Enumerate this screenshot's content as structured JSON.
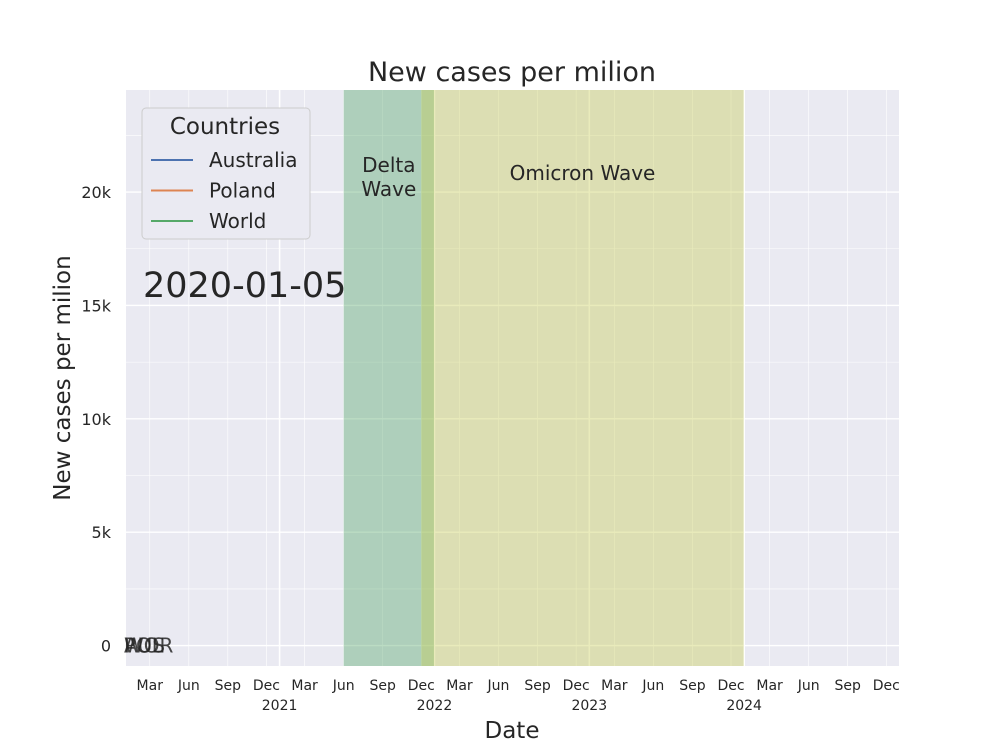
{
  "chart_data": {
    "type": "line",
    "title": "New cases per milion",
    "xlabel": "Date",
    "ylabel": "New cases per milion",
    "xlim": [
      "2020-01-05",
      "2024-12-31"
    ],
    "ylim": [
      -900,
      24500
    ],
    "y_ticks": [
      0,
      5000,
      10000,
      15000,
      20000
    ],
    "y_tick_labels": [
      "0",
      "5k",
      "10k",
      "15k",
      "20k"
    ],
    "x_ticks": [
      {
        "date": "2020-03-01",
        "label": "Mar"
      },
      {
        "date": "2020-06-01",
        "label": "Jun"
      },
      {
        "date": "2020-09-01",
        "label": "Sep"
      },
      {
        "date": "2020-12-01",
        "label": "Dec"
      },
      {
        "date": "2021-03-01",
        "label": "Mar"
      },
      {
        "date": "2021-06-01",
        "label": "Jun"
      },
      {
        "date": "2021-09-01",
        "label": "Sep"
      },
      {
        "date": "2021-12-01",
        "label": "Dec"
      },
      {
        "date": "2022-03-01",
        "label": "Mar"
      },
      {
        "date": "2022-06-01",
        "label": "Jun"
      },
      {
        "date": "2022-09-01",
        "label": "Sep"
      },
      {
        "date": "2022-12-01",
        "label": "Dec"
      },
      {
        "date": "2023-03-01",
        "label": "Mar"
      },
      {
        "date": "2023-06-01",
        "label": "Jun"
      },
      {
        "date": "2023-09-01",
        "label": "Sep"
      },
      {
        "date": "2023-12-01",
        "label": "Dec"
      },
      {
        "date": "2024-03-01",
        "label": "Mar"
      },
      {
        "date": "2024-06-01",
        "label": "Jun"
      },
      {
        "date": "2024-09-01",
        "label": "Sep"
      },
      {
        "date": "2024-12-01",
        "label": "Dec"
      }
    ],
    "x_major_ticks": [
      {
        "date": "2021-01-01",
        "label": "2021"
      },
      {
        "date": "2022-01-01",
        "label": "2022"
      },
      {
        "date": "2023-01-01",
        "label": "2023"
      },
      {
        "date": "2024-01-01",
        "label": "2024"
      }
    ],
    "series": [
      {
        "name": "Australia",
        "color": "#4c72b0",
        "points": [
          [
            "2020-01-05",
            0
          ]
        ],
        "end_label": "AUS"
      },
      {
        "name": "Poland",
        "color": "#dd8452",
        "points": [
          [
            "2020-01-05",
            0
          ]
        ],
        "end_label": "POL"
      },
      {
        "name": "World",
        "color": "#55a868",
        "points": [
          [
            "2020-01-05",
            0
          ]
        ],
        "end_label": "WOR"
      }
    ],
    "bands": [
      {
        "label": "Delta\nWave",
        "start": "2021-06-01",
        "end": "2021-12-31",
        "color": "#55a868",
        "opacity": 0.4
      },
      {
        "label": "Omicron Wave",
        "start": "2021-12-01",
        "end": "2023-12-31",
        "color": "#c8cc55",
        "opacity": 0.4
      }
    ],
    "date_annotation": "2020-01-05",
    "legend": {
      "title": "Countries",
      "placement": "upper-left"
    },
    "grid": true
  }
}
